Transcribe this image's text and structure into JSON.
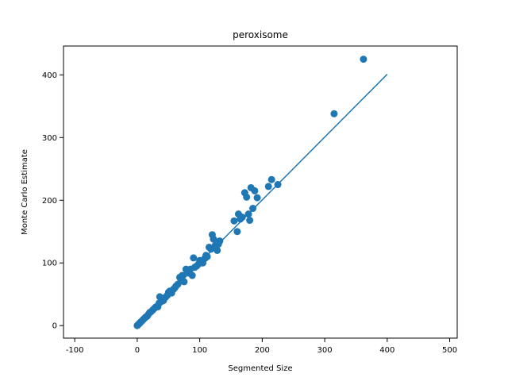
{
  "chart_data": {
    "type": "scatter",
    "title": "peroxisome",
    "xlabel": "Segmented Size",
    "ylabel": "Monte Carlo Estimate",
    "xlim": [
      -118,
      512
    ],
    "ylim": [
      -20,
      446
    ],
    "xticks": [
      -100,
      0,
      100,
      200,
      300,
      400,
      500
    ],
    "yticks": [
      0,
      100,
      200,
      300,
      400
    ],
    "grid": false,
    "legend": "none",
    "colors": {
      "points": "#1f77b4",
      "line": "#1f77b4",
      "axes": "#000000",
      "background": "#ffffff"
    },
    "series": [
      {
        "type": "scatter",
        "points": [
          [
            0,
            0
          ],
          [
            1,
            1
          ],
          [
            2,
            2
          ],
          [
            3,
            3
          ],
          [
            4,
            4
          ],
          [
            5,
            5
          ],
          [
            6,
            6
          ],
          [
            8,
            8
          ],
          [
            10,
            10
          ],
          [
            12,
            12
          ],
          [
            14,
            14
          ],
          [
            16,
            15
          ],
          [
            18,
            18
          ],
          [
            20,
            21
          ],
          [
            22,
            22
          ],
          [
            25,
            25
          ],
          [
            28,
            28
          ],
          [
            30,
            30
          ],
          [
            33,
            30
          ],
          [
            35,
            36
          ],
          [
            36,
            46
          ],
          [
            38,
            38
          ],
          [
            40,
            42
          ],
          [
            42,
            40
          ],
          [
            45,
            45
          ],
          [
            48,
            48
          ],
          [
            50,
            53
          ],
          [
            52,
            55
          ],
          [
            55,
            52
          ],
          [
            58,
            58
          ],
          [
            60,
            60
          ],
          [
            62,
            63
          ],
          [
            65,
            66
          ],
          [
            68,
            77
          ],
          [
            70,
            72
          ],
          [
            72,
            80
          ],
          [
            75,
            70
          ],
          [
            78,
            90
          ],
          [
            80,
            86
          ],
          [
            82,
            84
          ],
          [
            85,
            90
          ],
          [
            88,
            80
          ],
          [
            90,
            108
          ],
          [
            92,
            93
          ],
          [
            95,
            95
          ],
          [
            98,
            98
          ],
          [
            100,
            104
          ],
          [
            102,
            102
          ],
          [
            105,
            100
          ],
          [
            108,
            107
          ],
          [
            110,
            112
          ],
          [
            112,
            110
          ],
          [
            115,
            125
          ],
          [
            118,
            122
          ],
          [
            120,
            145
          ],
          [
            122,
            138
          ],
          [
            125,
            128
          ],
          [
            128,
            120
          ],
          [
            130,
            130
          ],
          [
            132,
            135
          ],
          [
            155,
            167
          ],
          [
            160,
            150
          ],
          [
            162,
            178
          ],
          [
            165,
            170
          ],
          [
            168,
            173
          ],
          [
            172,
            212
          ],
          [
            175,
            205
          ],
          [
            178,
            178
          ],
          [
            180,
            168
          ],
          [
            182,
            220
          ],
          [
            185,
            187
          ],
          [
            188,
            215
          ],
          [
            192,
            204
          ],
          [
            210,
            222
          ],
          [
            215,
            233
          ],
          [
            225,
            225
          ],
          [
            315,
            338
          ],
          [
            362,
            425
          ]
        ]
      },
      {
        "type": "line",
        "points": [
          [
            0,
            0
          ],
          [
            400,
            401
          ]
        ]
      }
    ]
  }
}
